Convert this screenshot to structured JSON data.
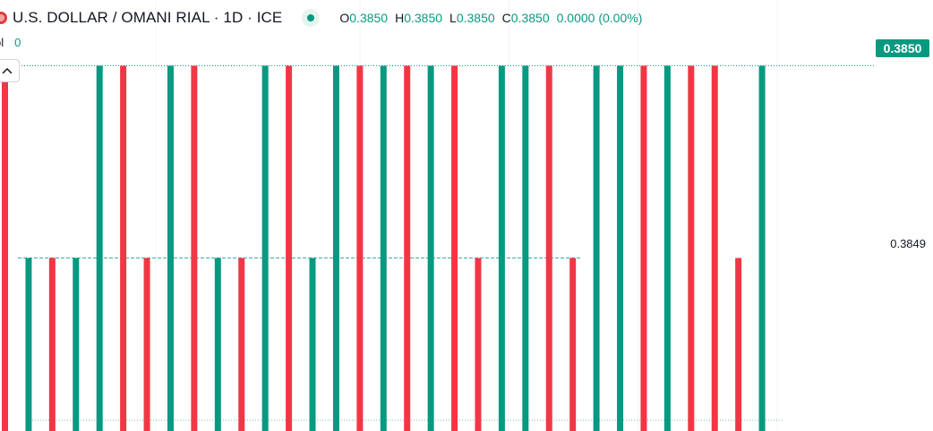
{
  "legend": {
    "symbol_title": "U.S. DOLLAR / OMANI RIAL · 1D · ICE",
    "ohlc": [
      {
        "key": "O",
        "value": "0.3850"
      },
      {
        "key": "H",
        "value": "0.3850"
      },
      {
        "key": "L",
        "value": "0.3850"
      },
      {
        "key": "C",
        "value": "0.3850"
      }
    ],
    "change": "0.0000 (0.00%)"
  },
  "volume": {
    "label": "ol",
    "value": "0"
  },
  "price_axis": {
    "current_price_label": "0.3850",
    "tick_label": "0.3849"
  },
  "colors": {
    "up": "#089981",
    "down": "#f23645",
    "grid": "#f0f3fa",
    "text": "#131722"
  },
  "chart_data": {
    "type": "bar",
    "title": "U.S. DOLLAR / OMANI RIAL · 1D · ICE",
    "y_ticks": [
      0.385,
      0.3849
    ],
    "y_range": [
      0.38481,
      0.38501
    ],
    "base": 0.38481,
    "bars": [
      {
        "value": 0.385,
        "direction": "down"
      },
      {
        "value": 0.3849,
        "direction": "up"
      },
      {
        "value": 0.3849,
        "direction": "down"
      },
      {
        "value": 0.3849,
        "direction": "up"
      },
      {
        "value": 0.385,
        "direction": "up"
      },
      {
        "value": 0.385,
        "direction": "down"
      },
      {
        "value": 0.3849,
        "direction": "down"
      },
      {
        "value": 0.385,
        "direction": "up"
      },
      {
        "value": 0.385,
        "direction": "down"
      },
      {
        "value": 0.3849,
        "direction": "up"
      },
      {
        "value": 0.3849,
        "direction": "down"
      },
      {
        "value": 0.385,
        "direction": "up"
      },
      {
        "value": 0.385,
        "direction": "down"
      },
      {
        "value": 0.3849,
        "direction": "up"
      },
      {
        "value": 0.385,
        "direction": "up"
      },
      {
        "value": 0.385,
        "direction": "down"
      },
      {
        "value": 0.385,
        "direction": "up"
      },
      {
        "value": 0.385,
        "direction": "down"
      },
      {
        "value": 0.385,
        "direction": "up"
      },
      {
        "value": 0.385,
        "direction": "down"
      },
      {
        "value": 0.3849,
        "direction": "down"
      },
      {
        "value": 0.385,
        "direction": "up"
      },
      {
        "value": 0.385,
        "direction": "up"
      },
      {
        "value": 0.385,
        "direction": "down"
      },
      {
        "value": 0.3849,
        "direction": "down"
      },
      {
        "value": 0.385,
        "direction": "up"
      },
      {
        "value": 0.385,
        "direction": "up"
      },
      {
        "value": 0.385,
        "direction": "down"
      },
      {
        "value": 0.385,
        "direction": "up"
      },
      {
        "value": 0.385,
        "direction": "down"
      },
      {
        "value": 0.385,
        "direction": "down"
      },
      {
        "value": 0.3849,
        "direction": "down"
      },
      {
        "value": 0.385,
        "direction": "up"
      }
    ]
  }
}
